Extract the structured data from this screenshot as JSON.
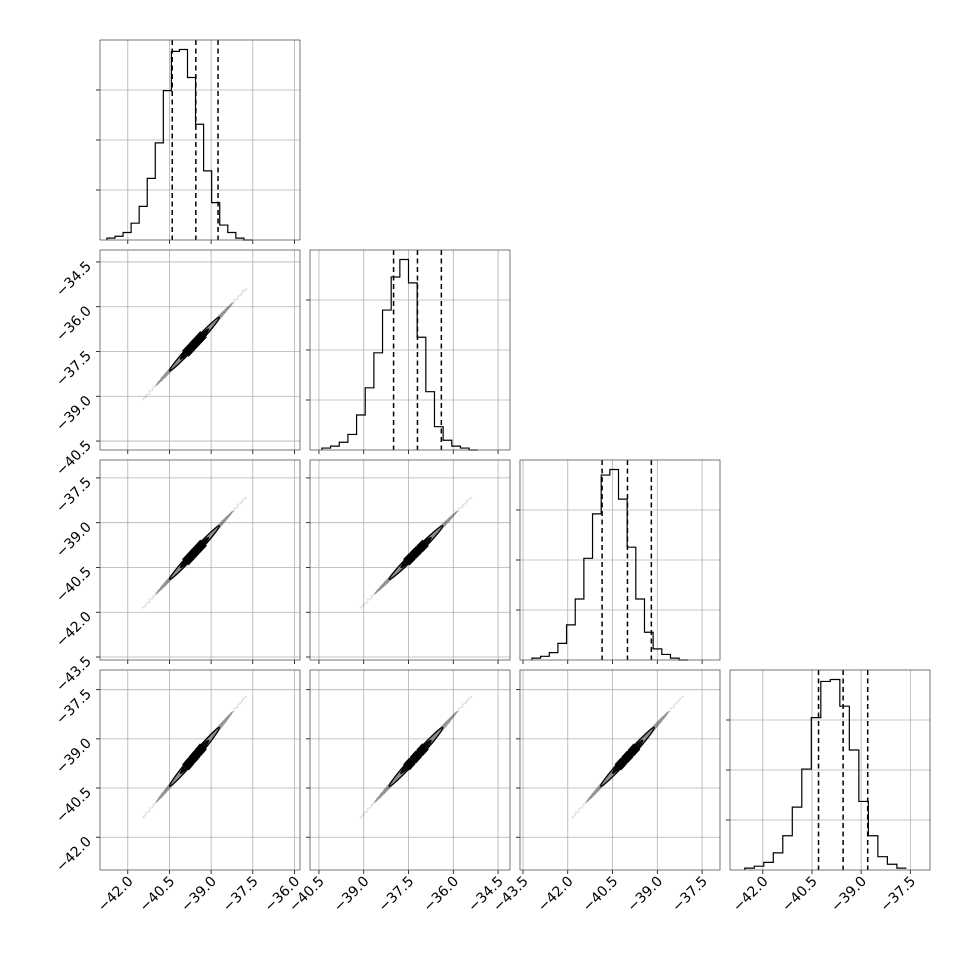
{
  "chart_data": {
    "type": "corner",
    "grid": true,
    "parameters": [
      {
        "range": [
          -43.0,
          -35.8
        ],
        "ticks": [
          -42.0,
          -40.5,
          -39.0,
          -37.5,
          -36.0
        ],
        "tick_labels": [
          "−42.0",
          "−40.5",
          "−39.0",
          "−37.5",
          "−36.0"
        ],
        "quantiles": [
          -40.4,
          -39.55,
          -38.75
        ],
        "mean": -39.6,
        "sd": 0.62
      },
      {
        "range": [
          -40.8,
          -34.1
        ],
        "ticks": [
          -40.5,
          -39.0,
          -37.5,
          -36.0,
          -34.5
        ],
        "tick_labels": [
          "−40.5",
          "−39.0",
          "−37.5",
          "−36.0",
          "−34.5"
        ],
        "quantiles": [
          -38.0,
          -37.2,
          -36.4
        ],
        "mean": -37.25,
        "sd": 0.62
      },
      {
        "range": [
          -43.6,
          -36.9
        ],
        "ticks": [
          -43.5,
          -42.0,
          -40.5,
          -39.0,
          -37.5
        ],
        "tick_labels": [
          "−43.5",
          "−42.0",
          "−40.5",
          "−39.0",
          "−37.5"
        ],
        "quantiles": [
          -40.85,
          -40.0,
          -39.2
        ],
        "mean": -40.0,
        "sd": 0.62
      },
      {
        "range": [
          -43.0,
          -36.9
        ],
        "ticks": [
          -42.0,
          -40.5,
          -39.0,
          -37.5
        ],
        "tick_labels": [
          "−42.0",
          "−40.5",
          "−39.0",
          "−37.5"
        ],
        "quantiles": [
          -40.3,
          -39.55,
          -38.8
        ],
        "mean": -39.55,
        "sd": 0.62
      }
    ],
    "histograms": [
      {
        "bin_start": -42.75,
        "bin_width": 0.29,
        "counts": [
          1,
          2,
          4,
          9,
          18,
          33,
          52,
          80,
          101,
          102,
          87,
          62,
          37,
          20,
          8,
          4,
          1,
          0
        ]
      },
      {
        "bin_start": -40.4,
        "bin_width": 0.29,
        "counts": [
          1,
          2,
          4,
          8,
          18,
          32,
          50,
          72,
          89,
          98,
          86,
          58,
          30,
          12,
          5,
          2,
          1,
          0
        ]
      },
      {
        "bin_start": -43.2,
        "bin_width": 0.29,
        "counts": [
          1,
          2,
          4,
          9,
          19,
          33,
          55,
          79,
          100,
          103,
          87,
          61,
          33,
          15,
          6,
          3,
          1,
          0
        ]
      },
      {
        "bin_start": -42.55,
        "bin_width": 0.29,
        "counts": [
          1,
          2,
          4,
          9,
          18,
          33,
          53,
          80,
          99,
          100,
          86,
          63,
          36,
          18,
          7,
          3,
          1
        ]
      }
    ]
  }
}
